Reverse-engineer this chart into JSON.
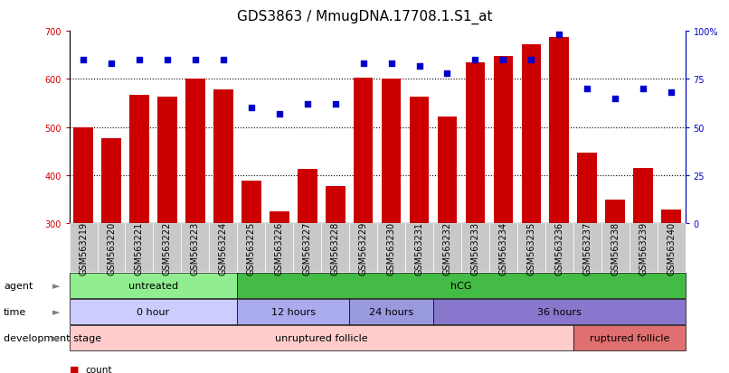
{
  "title": "GDS3863 / MmugDNA.17708.1.S1_at",
  "samples": [
    "GSM563219",
    "GSM563220",
    "GSM563221",
    "GSM563222",
    "GSM563223",
    "GSM563224",
    "GSM563225",
    "GSM563226",
    "GSM563227",
    "GSM563228",
    "GSM563229",
    "GSM563230",
    "GSM563231",
    "GSM563232",
    "GSM563233",
    "GSM563234",
    "GSM563235",
    "GSM563236",
    "GSM563237",
    "GSM563238",
    "GSM563239",
    "GSM563240"
  ],
  "counts": [
    500,
    478,
    568,
    563,
    600,
    578,
    388,
    325,
    413,
    378,
    603,
    600,
    563,
    522,
    635,
    648,
    673,
    688,
    447,
    350,
    415,
    328
  ],
  "percentiles": [
    85,
    83,
    85,
    85,
    85,
    85,
    60,
    57,
    62,
    62,
    83,
    83,
    82,
    78,
    85,
    85,
    85,
    98,
    70,
    65,
    70,
    68
  ],
  "bar_color": "#cc0000",
  "percentile_color": "#0000cc",
  "ymin": 300,
  "ymax": 700,
  "yticks": [
    300,
    400,
    500,
    600,
    700
  ],
  "y2ticks": [
    0,
    25,
    50,
    75,
    100
  ],
  "y2labels": [
    "0",
    "25",
    "50",
    "75",
    "100%"
  ],
  "dotted_lines": [
    400,
    500,
    600
  ],
  "agent_untreated": {
    "start": 0,
    "end": 6,
    "label": "untreated",
    "color": "#90ee90"
  },
  "agent_hcg": {
    "start": 6,
    "end": 22,
    "label": "hCG",
    "color": "#44bb44"
  },
  "time_0h": {
    "start": 0,
    "end": 6,
    "label": "0 hour",
    "color": "#ccccff"
  },
  "time_12h": {
    "start": 6,
    "end": 10,
    "label": "12 hours",
    "color": "#aaaaee"
  },
  "time_24h": {
    "start": 10,
    "end": 13,
    "label": "24 hours",
    "color": "#9999dd"
  },
  "time_36h": {
    "start": 13,
    "end": 22,
    "label": "36 hours",
    "color": "#8877cc"
  },
  "dev_unruptured": {
    "start": 0,
    "end": 18,
    "label": "unruptured follicle",
    "color": "#ffcccc"
  },
  "dev_ruptured": {
    "start": 18,
    "end": 22,
    "label": "ruptured follicle",
    "color": "#e07070"
  },
  "tick_label_bg": "#c8c8c8",
  "title_fontsize": 11,
  "tick_fontsize": 7,
  "label_fontsize": 8,
  "annotation_fontsize": 8
}
